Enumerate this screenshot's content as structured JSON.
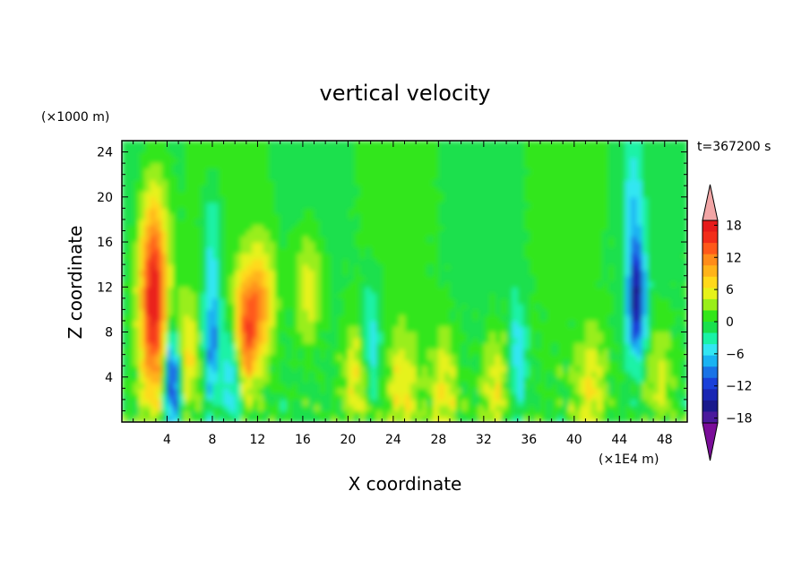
{
  "chart_data": {
    "type": "heatmap",
    "title": "vertical velocity",
    "xlabel": "X coordinate",
    "ylabel": "Z coordinate",
    "x_unit": "(×1E4 m)",
    "y_unit": "(×1000 m)",
    "time_label": "t=367200 s",
    "xlim": [
      0,
      50
    ],
    "ylim": [
      0,
      25
    ],
    "xticks": [
      "4",
      "8",
      "12",
      "16",
      "20",
      "24",
      "28",
      "32",
      "36",
      "40",
      "44",
      "48"
    ],
    "yticks": [
      "4",
      "8",
      "12",
      "16",
      "20",
      "24"
    ],
    "colorbar": {
      "min": -21,
      "max": 21,
      "step": 3,
      "tick_labels": [
        "18",
        "12",
        "6",
        "0",
        "−6",
        "−12",
        "−18"
      ],
      "colors": [
        "#7a0d99",
        "#4a1a9c",
        "#1a1a8c",
        "#1a26b3",
        "#1a40d9",
        "#1a73e6",
        "#1ab3f2",
        "#33e6f2",
        "#1af2a6",
        "#1ae04d",
        "#33e61a",
        "#99ee1a",
        "#e6f21a",
        "#ffd91a",
        "#ffb31a",
        "#ff8c1a",
        "#ff591a",
        "#f22d1a",
        "#e61a1a",
        "#f2a6a6"
      ]
    },
    "background_value": 0,
    "features": [
      {
        "type": "updraft",
        "x": 2.8,
        "z": 11,
        "w_max": 19
      },
      {
        "type": "updraft",
        "x": 5.5,
        "z": 6,
        "w_max": 8
      },
      {
        "type": "updraft",
        "x": 10.8,
        "z": 8,
        "w_max": 13
      },
      {
        "type": "updraft",
        "x": 12.3,
        "z": 11,
        "w_max": 9
      },
      {
        "type": "updraft",
        "x": 16.5,
        "z": 12,
        "w_max": 6
      },
      {
        "type": "updraft",
        "x": 20.8,
        "z": 4,
        "w_max": 6
      },
      {
        "type": "updraft",
        "x": 24.8,
        "z": 3,
        "w_max": 6
      },
      {
        "type": "updraft",
        "x": 28.5,
        "z": 3,
        "w_max": 6
      },
      {
        "type": "updraft",
        "x": 33,
        "z": 3,
        "w_max": 6
      },
      {
        "type": "updraft",
        "x": 41.5,
        "z": 3,
        "w_max": 6
      },
      {
        "type": "updraft",
        "x": 47.5,
        "z": 4,
        "w_max": 5
      },
      {
        "type": "downdraft",
        "x": 4.5,
        "z": 4,
        "w_min": -17
      },
      {
        "type": "downdraft",
        "x": 8,
        "z": 7,
        "w_min": -10
      },
      {
        "type": "downdraft",
        "x": 9.8,
        "z": 5,
        "w_min": -10
      },
      {
        "type": "downdraft",
        "x": 8,
        "z": 16,
        "w_min": -5
      },
      {
        "type": "downdraft",
        "x": 22,
        "z": 7,
        "w_min": -7
      },
      {
        "type": "downdraft",
        "x": 35,
        "z": 6,
        "w_min": -6
      },
      {
        "type": "downdraft",
        "x": 45.5,
        "z": 11,
        "w_min": -16
      },
      {
        "type": "downdraft",
        "x": 45.2,
        "z": 20,
        "w_min": -5
      }
    ]
  }
}
